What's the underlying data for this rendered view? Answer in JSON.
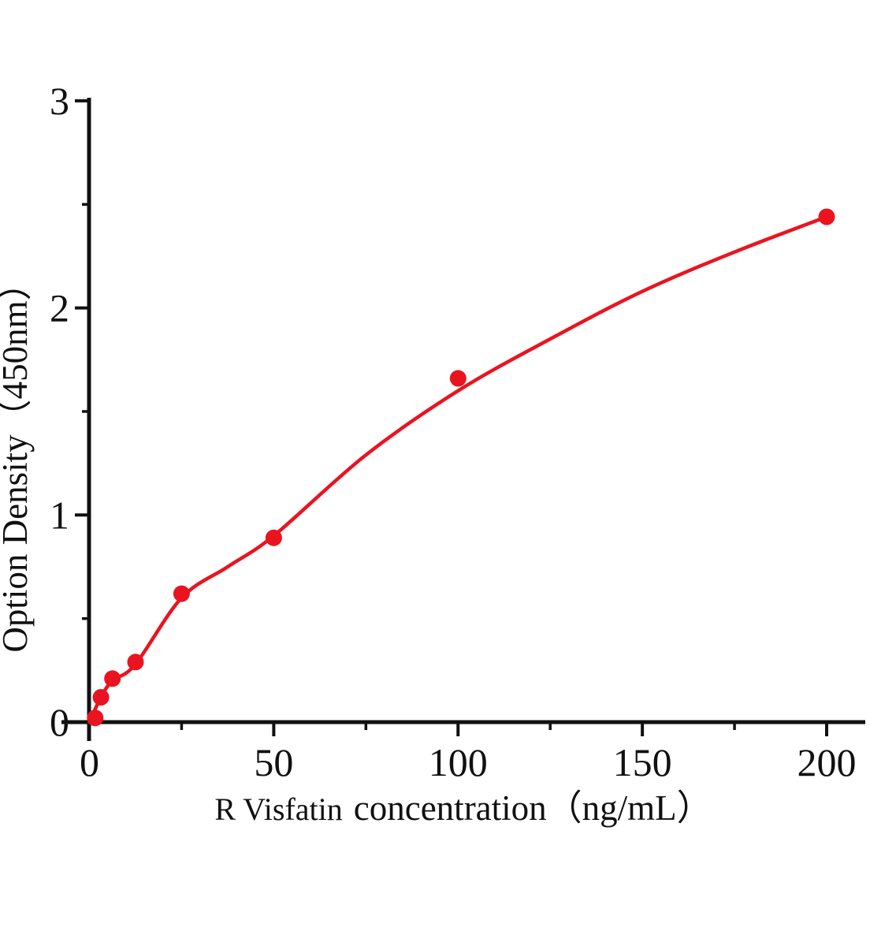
{
  "page": {
    "background": "#ffffff"
  },
  "chart_data": {
    "type": "scatter",
    "title": "",
    "subtitle": "",
    "xlabel": "R Visfatin concentration（ng/mL）",
    "xlabel_part1": "R Visfatin",
    "xlabel_part2": "concentration（ng/mL）",
    "ylabel": "Option Density（450nm）",
    "legend_position": "none",
    "grid": false,
    "x_axis": {
      "range": [
        0,
        210
      ],
      "major_ticks": [
        0,
        50,
        100,
        150,
        200
      ],
      "minor_ticks": [
        25,
        75,
        125,
        175
      ]
    },
    "y_axis": {
      "range": [
        0,
        3.05
      ],
      "major_ticks": [
        0,
        1,
        2,
        3
      ],
      "minor_ticks": [
        0.5,
        1.5,
        2.5
      ]
    },
    "colors": {
      "points": "#ea1420",
      "curve": "#ea1420",
      "axis": "#111111",
      "text": "#111111"
    },
    "points": [
      [
        1.56,
        0.02
      ],
      [
        3.12,
        0.12
      ],
      [
        6.25,
        0.21
      ],
      [
        12.5,
        0.29
      ],
      [
        25,
        0.62
      ],
      [
        50,
        0.89
      ],
      [
        100,
        1.66
      ],
      [
        200,
        2.44
      ]
    ],
    "fit_curve": [
      [
        0,
        0
      ],
      [
        3.12,
        0.12
      ],
      [
        6.25,
        0.2
      ],
      [
        12.5,
        0.28
      ],
      [
        25,
        0.6
      ],
      [
        37.5,
        0.75
      ],
      [
        50,
        0.9
      ],
      [
        75,
        1.29
      ],
      [
        100,
        1.6
      ],
      [
        125,
        1.85
      ],
      [
        150,
        2.08
      ],
      [
        175,
        2.27
      ],
      [
        200,
        2.44
      ]
    ]
  }
}
